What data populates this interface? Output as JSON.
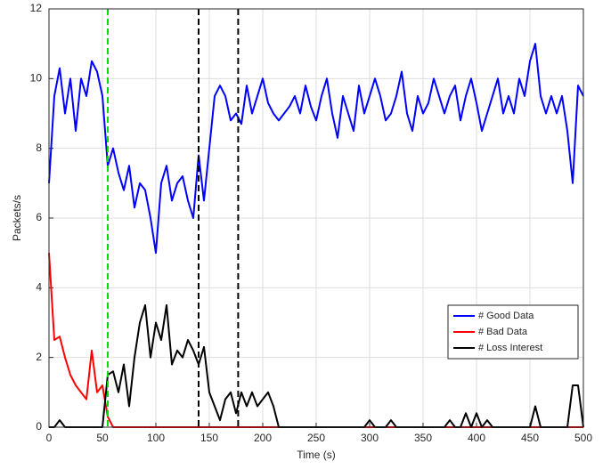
{
  "chart_data": {
    "type": "line",
    "xlabel": "Time (s)",
    "ylabel": "Packets/s",
    "xlim": [
      0,
      500
    ],
    "ylim": [
      0,
      12
    ],
    "xticks": [
      0,
      50,
      100,
      150,
      200,
      250,
      300,
      350,
      400,
      450,
      500
    ],
    "yticks": [
      0,
      2,
      4,
      6,
      8,
      10,
      12
    ],
    "grid": true,
    "legend": "lower right",
    "x": [
      0,
      5,
      10,
      15,
      20,
      25,
      30,
      35,
      40,
      45,
      50,
      55,
      60,
      65,
      70,
      75,
      80,
      85,
      90,
      95,
      100,
      105,
      110,
      115,
      120,
      125,
      130,
      135,
      140,
      145,
      150,
      155,
      160,
      165,
      170,
      175,
      180,
      185,
      190,
      195,
      200,
      205,
      210,
      215,
      220,
      225,
      230,
      235,
      240,
      245,
      250,
      255,
      260,
      265,
      270,
      275,
      280,
      285,
      290,
      295,
      300,
      305,
      310,
      315,
      320,
      325,
      330,
      335,
      340,
      345,
      350,
      355,
      360,
      365,
      370,
      375,
      380,
      385,
      390,
      395,
      400,
      405,
      410,
      415,
      420,
      425,
      430,
      435,
      440,
      445,
      450,
      455,
      460,
      465,
      470,
      475,
      480,
      485,
      490,
      495,
      500
    ],
    "series": [
      {
        "name": "# Good Data",
        "color": "#0000ff",
        "values": [
          7.0,
          9.5,
          10.3,
          9.0,
          10.0,
          8.5,
          10.0,
          9.5,
          10.5,
          10.2,
          9.5,
          7.5,
          8.0,
          7.3,
          6.8,
          7.5,
          6.3,
          7.0,
          6.8,
          6.0,
          5.0,
          7.0,
          7.5,
          6.5,
          7.0,
          7.2,
          6.5,
          6.0,
          7.8,
          6.5,
          8.0,
          9.5,
          9.8,
          9.5,
          8.8,
          9.0,
          8.7,
          9.8,
          9.0,
          9.5,
          10.0,
          9.3,
          9.0,
          8.8,
          9.0,
          9.2,
          9.5,
          9.0,
          9.8,
          9.2,
          8.8,
          9.5,
          10.0,
          9.0,
          8.3,
          9.5,
          9.0,
          8.5,
          9.8,
          9.0,
          9.5,
          10.0,
          9.5,
          8.8,
          9.0,
          9.5,
          10.2,
          9.0,
          8.5,
          9.5,
          9.0,
          9.3,
          10.0,
          9.5,
          9.0,
          9.5,
          9.8,
          8.8,
          9.5,
          10.0,
          9.3,
          8.5,
          9.0,
          9.5,
          10.0,
          9.0,
          9.5,
          9.0,
          10.0,
          9.5,
          10.5,
          11.0,
          9.5,
          9.0,
          9.5,
          9.0,
          9.5,
          8.5,
          7.0,
          9.8,
          9.5
        ]
      },
      {
        "name": "# Bad Data",
        "color": "#ff0000",
        "values": [
          5.0,
          2.5,
          2.6,
          2.0,
          1.5,
          1.2,
          1.0,
          0.8,
          2.2,
          1.0,
          1.2,
          0.3,
          0,
          0,
          0,
          0,
          0,
          0,
          0,
          0,
          0,
          0,
          0,
          0,
          0,
          0,
          0,
          0,
          0,
          0,
          0,
          0,
          0,
          0,
          0,
          0,
          0,
          0,
          0,
          0,
          0,
          0,
          0,
          0,
          0,
          0,
          0,
          0,
          0,
          0,
          0,
          0,
          0,
          0,
          0,
          0,
          0,
          0,
          0,
          0,
          0,
          0,
          0,
          0,
          0,
          0,
          0,
          0,
          0,
          0,
          0,
          0,
          0,
          0,
          0,
          0,
          0,
          0,
          0,
          0,
          0,
          0,
          0,
          0,
          0,
          0,
          0,
          0,
          0,
          0,
          0,
          0,
          0,
          0,
          0,
          0,
          0,
          0,
          0,
          0,
          0
        ]
      },
      {
        "name": "# Loss Interest",
        "color": "#000000",
        "values": [
          0,
          0,
          0.2,
          0,
          0,
          0,
          0,
          0,
          0,
          0,
          0,
          1.5,
          1.6,
          1.0,
          1.8,
          0.6,
          2.0,
          3.0,
          3.5,
          2.0,
          3.0,
          2.5,
          3.5,
          1.8,
          2.2,
          2.0,
          2.5,
          2.2,
          1.8,
          2.3,
          1.0,
          0.6,
          0.2,
          0.8,
          1.0,
          0.4,
          1.0,
          0.6,
          1.0,
          0.6,
          0.8,
          1.0,
          0.6,
          0,
          0,
          0,
          0,
          0,
          0,
          0,
          0,
          0,
          0,
          0,
          0,
          0,
          0,
          0,
          0,
          0,
          0.2,
          0,
          0,
          0,
          0.2,
          0,
          0,
          0,
          0,
          0,
          0,
          0,
          0,
          0,
          0,
          0.2,
          0,
          0,
          0.4,
          0,
          0.4,
          0,
          0.2,
          0,
          0,
          0,
          0,
          0,
          0,
          0,
          0,
          0.6,
          0,
          0,
          0,
          0,
          0,
          0,
          1.2,
          1.2,
          0
        ]
      }
    ],
    "vlines": [
      {
        "x": 55,
        "color": "#00dd00"
      },
      {
        "x": 140,
        "color": "#000000"
      },
      {
        "x": 177,
        "color": "#000000"
      }
    ]
  }
}
